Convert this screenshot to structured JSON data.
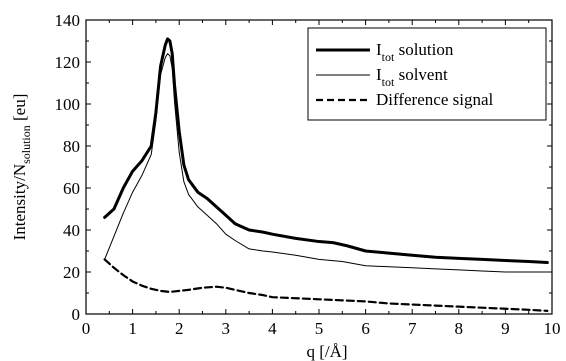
{
  "chart_data": {
    "type": "line",
    "xlabel": "q [/Å]",
    "ylabel": {
      "main": "Intensity/N",
      "sub": "solution",
      "unit": " [eu]"
    },
    "xlim": [
      0,
      10
    ],
    "ylim": [
      0,
      140
    ],
    "x_ticks": [
      0,
      1,
      2,
      3,
      4,
      5,
      6,
      7,
      8,
      9,
      10
    ],
    "y_ticks": [
      0,
      20,
      40,
      60,
      80,
      100,
      120,
      140
    ],
    "x_tick_labels": [
      "0",
      "1",
      "2",
      "3",
      "4",
      "5",
      "6",
      "7",
      "8",
      "9",
      "10"
    ],
    "y_tick_labels": [
      "0",
      "20",
      "40",
      "60",
      "80",
      "100",
      "120",
      "140"
    ],
    "grid": false,
    "legend_position": "top-right",
    "series": [
      {
        "name": "I_tot solution",
        "legend": {
          "main": "I",
          "sub": "tot",
          "rest": " solution"
        },
        "style": "thick-solid",
        "color": "#000000",
        "x": [
          0.4,
          0.6,
          0.8,
          1.0,
          1.2,
          1.4,
          1.5,
          1.6,
          1.7,
          1.75,
          1.8,
          1.85,
          1.9,
          2.0,
          2.1,
          2.2,
          2.4,
          2.6,
          2.8,
          3.0,
          3.2,
          3.5,
          3.8,
          4.0,
          4.5,
          5.0,
          5.3,
          5.6,
          6.0,
          6.5,
          7.0,
          7.5,
          8.0,
          8.5,
          9.0,
          9.5,
          9.9
        ],
        "y": [
          46,
          50,
          60,
          68,
          73,
          80,
          96,
          118,
          128,
          131,
          130,
          124,
          109,
          87,
          71,
          64,
          58,
          55,
          51,
          47,
          43,
          40,
          39,
          38,
          36,
          34.5,
          34,
          32.5,
          30,
          29,
          28,
          27,
          26.5,
          26,
          25.5,
          25,
          24.5
        ]
      },
      {
        "name": "I_tot solvent",
        "legend": {
          "main": "I",
          "sub": "tot",
          "rest": " solvent"
        },
        "style": "thin-solid",
        "color": "#000000",
        "x": [
          0.4,
          0.6,
          0.8,
          1.0,
          1.2,
          1.4,
          1.5,
          1.6,
          1.7,
          1.75,
          1.8,
          1.85,
          1.9,
          2.0,
          2.1,
          2.2,
          2.4,
          2.6,
          2.8,
          3.0,
          3.2,
          3.5,
          3.8,
          4.0,
          4.5,
          5.0,
          5.5,
          6.0,
          6.5,
          7.0,
          7.5,
          8.0,
          8.5,
          9.0,
          9.5,
          9.9
        ],
        "y": [
          26,
          37,
          48,
          58,
          66,
          76,
          92,
          114,
          122,
          124,
          123,
          117,
          101,
          77,
          63,
          57,
          51,
          47,
          43,
          38,
          35,
          31,
          30,
          29.5,
          28,
          26,
          25,
          23,
          22.5,
          22,
          21.5,
          21,
          20.5,
          20,
          20,
          20
        ]
      },
      {
        "name": "Difference signal",
        "legend": {
          "main": "Difference signal",
          "sub": "",
          "rest": ""
        },
        "style": "dashed",
        "color": "#000000",
        "x": [
          0.4,
          0.6,
          0.8,
          1.0,
          1.2,
          1.4,
          1.6,
          1.8,
          2.0,
          2.2,
          2.5,
          2.8,
          3.0,
          3.2,
          3.5,
          3.8,
          4.0,
          4.5,
          5.0,
          5.5,
          6.0,
          6.5,
          7.0,
          7.5,
          8.0,
          8.5,
          9.0,
          9.5,
          9.9
        ],
        "y": [
          26,
          22,
          18.5,
          15.5,
          13.5,
          12,
          11,
          10.5,
          11,
          11.5,
          12.5,
          13,
          12.5,
          11.5,
          10,
          9,
          8,
          7.5,
          7,
          6.5,
          6,
          5,
          4.5,
          4,
          3.5,
          3,
          2.5,
          2,
          1.5
        ]
      }
    ]
  }
}
